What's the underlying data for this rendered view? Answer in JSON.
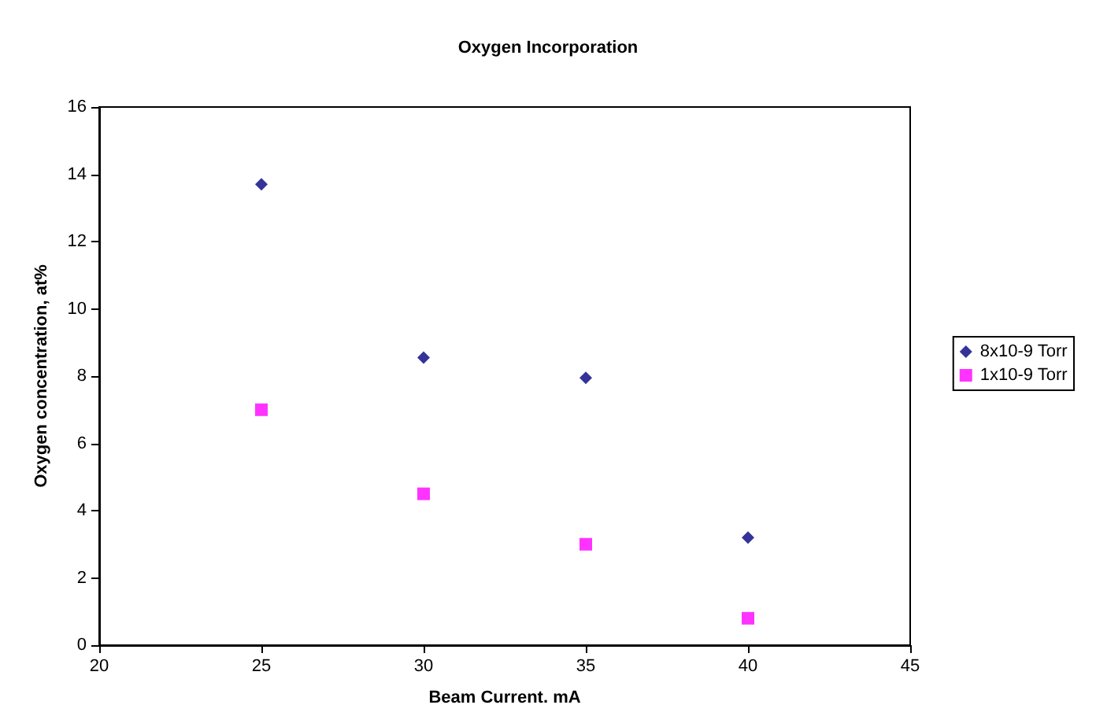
{
  "chart_data": {
    "type": "scatter",
    "title": "Oxygen Incorporation",
    "xlabel": "Beam Current. mA",
    "ylabel": "Oxygen concentration, at%",
    "x": [
      25,
      30,
      35,
      40
    ],
    "series": [
      {
        "name": "8x10-9 Torr",
        "color": "#000080",
        "marker": "diamond",
        "values": [
          13.7,
          8.55,
          7.95,
          3.2
        ]
      },
      {
        "name": "1x10-9 Torr",
        "color": "#ff00ff",
        "marker": "square",
        "values": [
          7.0,
          4.5,
          3.0,
          0.8
        ]
      }
    ],
    "xlim": [
      20,
      45
    ],
    "xticks": [
      20,
      25,
      30,
      35,
      40,
      45
    ],
    "ylim": [
      0,
      16
    ],
    "yticks": [
      0,
      2,
      4,
      6,
      8,
      10,
      12,
      14,
      16
    ],
    "grid": false,
    "legend": "right"
  }
}
